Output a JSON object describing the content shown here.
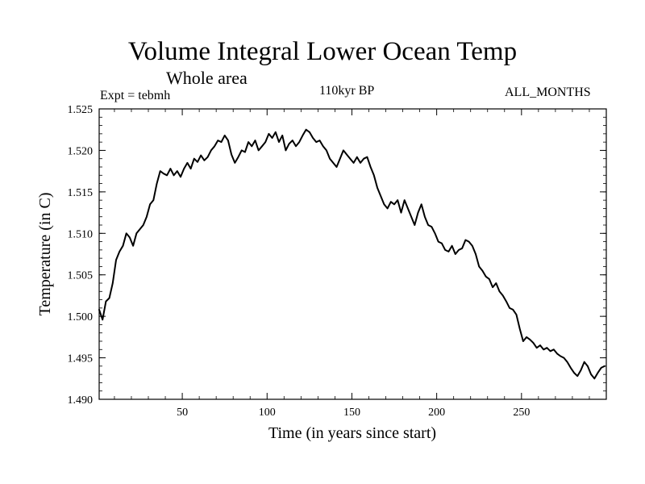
{
  "header": {
    "title": "Volume Integral Lower Ocean Temp",
    "subtitle": "Whole area",
    "experiment": "Expt = tebmh",
    "period": "110kyr BP",
    "months": "ALL_MONTHS"
  },
  "chart_data": {
    "type": "line",
    "title": "Volume Integral Lower Ocean Temp",
    "xlabel": "Time (in years since start)",
    "ylabel": "Temperature (in C)",
    "xlim": [
      1,
      300
    ],
    "ylim": [
      1.49,
      1.525
    ],
    "x_ticks": [
      50,
      100,
      150,
      200,
      250
    ],
    "y_ticks": [
      "1.490",
      "1.495",
      "1.500",
      "1.505",
      "1.510",
      "1.515",
      "1.520",
      "1.525"
    ],
    "grid": false,
    "legend": "none",
    "series": [
      {
        "name": "Volume Integral Lower Ocean Temp",
        "x": [
          1,
          3,
          5,
          7,
          9,
          11,
          13,
          15,
          17,
          19,
          21,
          23,
          25,
          27,
          29,
          31,
          33,
          35,
          37,
          39,
          41,
          43,
          45,
          47,
          49,
          51,
          53,
          55,
          57,
          59,
          61,
          63,
          65,
          67,
          69,
          71,
          73,
          75,
          77,
          79,
          81,
          83,
          85,
          87,
          89,
          91,
          93,
          95,
          97,
          99,
          101,
          103,
          105,
          107,
          109,
          111,
          113,
          115,
          117,
          119,
          121,
          123,
          125,
          127,
          129,
          131,
          133,
          135,
          137,
          139,
          141,
          143,
          145,
          147,
          149,
          151,
          153,
          155,
          157,
          159,
          161,
          163,
          165,
          167,
          169,
          171,
          173,
          175,
          177,
          179,
          181,
          183,
          185,
          187,
          189,
          191,
          193,
          195,
          197,
          199,
          201,
          203,
          205,
          207,
          209,
          211,
          213,
          215,
          217,
          219,
          221,
          223,
          225,
          227,
          229,
          231,
          233,
          235,
          237,
          239,
          241,
          243,
          245,
          247,
          249,
          251,
          253,
          255,
          257,
          259,
          261,
          263,
          265,
          267,
          269,
          271,
          273,
          275,
          277,
          279,
          281,
          283,
          285,
          287,
          289,
          291,
          293,
          295,
          297,
          299
        ],
        "values": [
          1.5008,
          1.4996,
          1.5018,
          1.5022,
          1.504,
          1.5068,
          1.5078,
          1.5085,
          1.51,
          1.5095,
          1.5085,
          1.51,
          1.5105,
          1.511,
          1.512,
          1.5135,
          1.514,
          1.516,
          1.5175,
          1.5172,
          1.517,
          1.5178,
          1.517,
          1.5175,
          1.5168,
          1.5178,
          1.5185,
          1.5178,
          1.519,
          1.5186,
          1.5194,
          1.5188,
          1.5192,
          1.52,
          1.5205,
          1.5212,
          1.521,
          1.5218,
          1.5212,
          1.5195,
          1.5185,
          1.5192,
          1.52,
          1.5198,
          1.521,
          1.5205,
          1.5212,
          1.52,
          1.5205,
          1.521,
          1.522,
          1.5215,
          1.5222,
          1.521,
          1.5218,
          1.52,
          1.5208,
          1.5212,
          1.5205,
          1.521,
          1.5218,
          1.5225,
          1.5222,
          1.5215,
          1.521,
          1.5212,
          1.5205,
          1.52,
          1.519,
          1.5185,
          1.518,
          1.519,
          1.52,
          1.5195,
          1.519,
          1.5185,
          1.5192,
          1.5185,
          1.519,
          1.5192,
          1.518,
          1.517,
          1.5155,
          1.5145,
          1.5135,
          1.513,
          1.5138,
          1.5135,
          1.514,
          1.5125,
          1.514,
          1.513,
          1.512,
          1.511,
          1.5125,
          1.5135,
          1.512,
          1.511,
          1.5108,
          1.51,
          1.509,
          1.5088,
          1.508,
          1.5078,
          1.5085,
          1.5075,
          1.508,
          1.5082,
          1.5092,
          1.509,
          1.5085,
          1.5075,
          1.506,
          1.5055,
          1.5048,
          1.5045,
          1.5035,
          1.504,
          1.503,
          1.5025,
          1.5018,
          1.501,
          1.5008,
          1.5002,
          1.4985,
          1.497,
          1.4975,
          1.4972,
          1.4968,
          1.4962,
          1.4965,
          1.496,
          1.4962,
          1.4958,
          1.496,
          1.4955,
          1.4952,
          1.495,
          1.4945,
          1.4938,
          1.4932,
          1.4928,
          1.4935,
          1.4945,
          1.494,
          1.493,
          1.4925,
          1.4932,
          1.4938,
          1.494
        ]
      }
    ]
  }
}
